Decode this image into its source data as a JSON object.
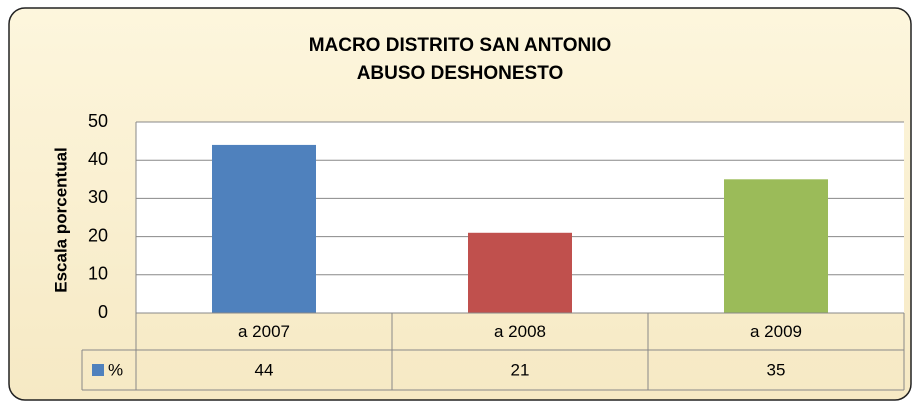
{
  "chart_data": {
    "type": "bar",
    "title": "MACRO DISTRITO SAN ANTONIO",
    "subtitle": "ABUSO DESHONESTO",
    "y_label": "Escala porcentual",
    "categories": [
      "a 2007",
      "a 2008",
      "a 2009"
    ],
    "series": [
      {
        "name": "%",
        "color": "#4f81bd",
        "values": [
          44,
          21,
          35
        ]
      }
    ],
    "colors": [
      "#4f81bd",
      "#c0504d",
      "#9bbb59"
    ],
    "ylim": [
      0,
      50
    ],
    "yticks": [
      0,
      10,
      20,
      30,
      40,
      50
    ],
    "grid": true,
    "data_table": true
  }
}
